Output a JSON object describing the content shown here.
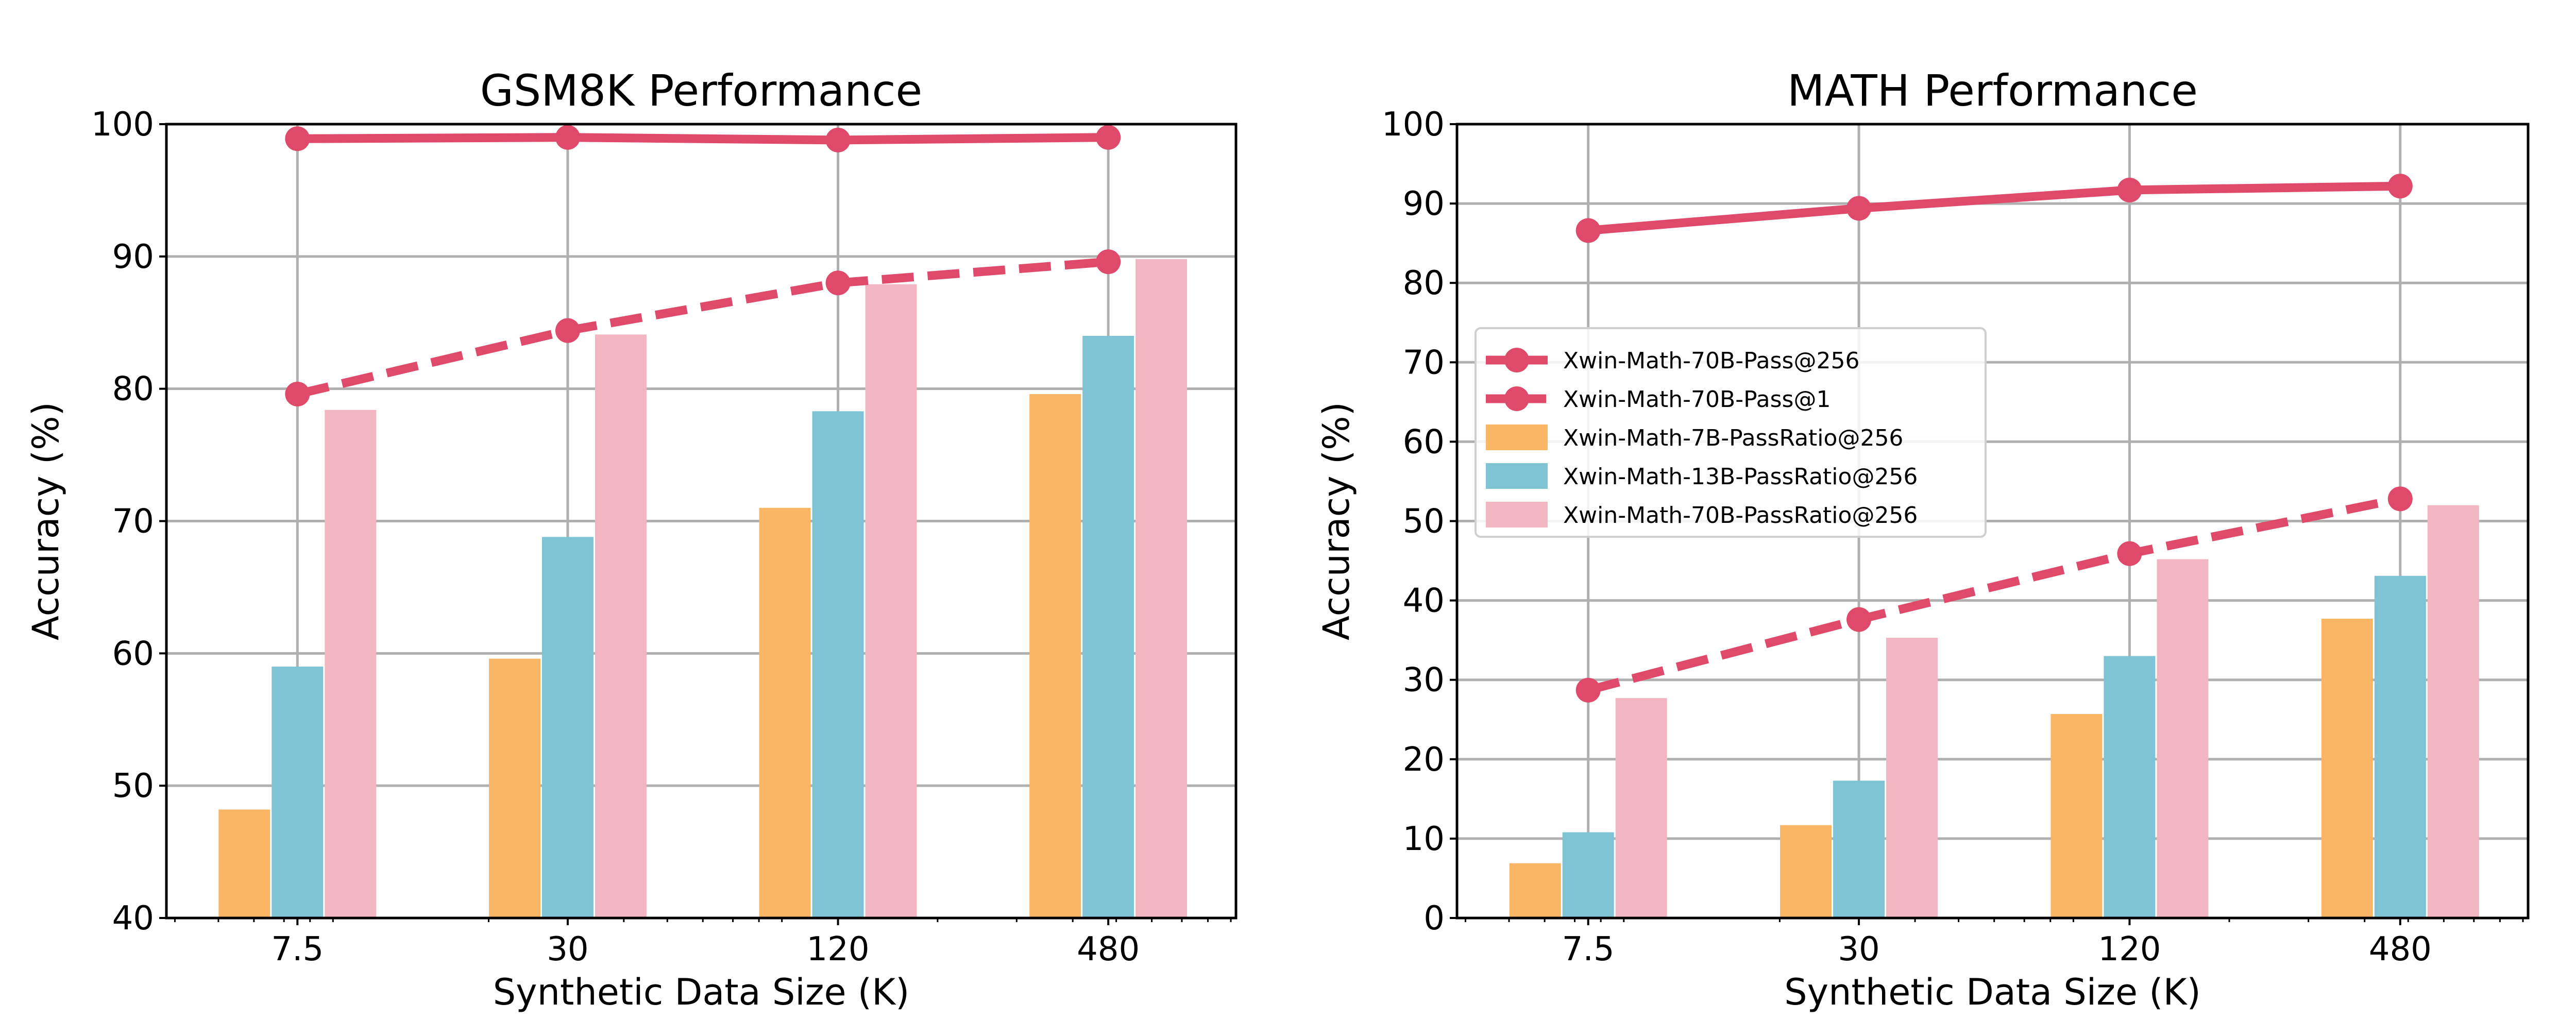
{
  "colors": {
    "pass256": "#E04A6A",
    "pass1": "#E04A6A",
    "b7": "#FBB665",
    "b13": "#7EC4D4",
    "b70": "#F1B6C1",
    "grid": "#b0b0b0"
  },
  "chart_data": [
    {
      "type": "bar+line",
      "title": "GSM8K Performance",
      "xlabel": "Synthetic Data Size (K)",
      "ylabel": "Accuracy (%)",
      "xscale": "log",
      "x": [
        7.5,
        30,
        120,
        480
      ],
      "xticklabels": [
        "7.5",
        "30",
        "120",
        "480"
      ],
      "xlim": [
        3.83,
        924
      ],
      "ylim": [
        40,
        100
      ],
      "yticks": [
        40,
        50,
        60,
        70,
        80,
        90,
        100
      ],
      "grid": true,
      "legend": null,
      "series": [
        {
          "name": "Xwin-Math-70B-Pass@256",
          "kind": "line",
          "style": "solid",
          "values": [
            98.9,
            99.0,
            98.8,
            99.0
          ]
        },
        {
          "name": "Xwin-Math-70B-Pass@1",
          "kind": "line",
          "style": "dashed",
          "values": [
            79.6,
            84.4,
            88.0,
            89.6
          ]
        },
        {
          "name": "Xwin-Math-7B-PassRatio@256",
          "kind": "bar",
          "values": [
            48.2,
            59.6,
            71.0,
            79.6
          ]
        },
        {
          "name": "Xwin-Math-13B-PassRatio@256",
          "kind": "bar",
          "values": [
            59.0,
            68.8,
            78.3,
            84.0
          ]
        },
        {
          "name": "Xwin-Math-70B-PassRatio@256",
          "kind": "bar",
          "values": [
            78.4,
            84.1,
            87.9,
            89.8
          ]
        }
      ]
    },
    {
      "type": "bar+line",
      "title": "MATH Performance",
      "xlabel": "Synthetic Data Size (K)",
      "ylabel": "Accuracy (%)",
      "xscale": "log",
      "x": [
        7.5,
        30,
        120,
        480
      ],
      "xticklabels": [
        "7.5",
        "30",
        "120",
        "480"
      ],
      "xlim": [
        3.83,
        924
      ],
      "ylim": [
        0,
        100
      ],
      "yticks": [
        0,
        10,
        20,
        30,
        40,
        50,
        60,
        70,
        80,
        90,
        100
      ],
      "grid": true,
      "legend": "center-left",
      "series": [
        {
          "name": "Xwin-Math-70B-Pass@256",
          "kind": "line",
          "style": "solid",
          "values": [
            86.6,
            89.4,
            91.7,
            92.2
          ]
        },
        {
          "name": "Xwin-Math-70B-Pass@1",
          "kind": "line",
          "style": "dashed",
          "values": [
            28.7,
            37.6,
            45.9,
            52.8
          ]
        },
        {
          "name": "Xwin-Math-7B-PassRatio@256",
          "kind": "bar",
          "values": [
            6.9,
            11.7,
            25.7,
            37.7
          ]
        },
        {
          "name": "Xwin-Math-13B-PassRatio@256",
          "kind": "bar",
          "values": [
            10.8,
            17.3,
            33.0,
            43.1
          ]
        },
        {
          "name": "Xwin-Math-70B-PassRatio@256",
          "kind": "bar",
          "values": [
            27.7,
            35.3,
            45.2,
            52.0
          ]
        }
      ]
    }
  ]
}
